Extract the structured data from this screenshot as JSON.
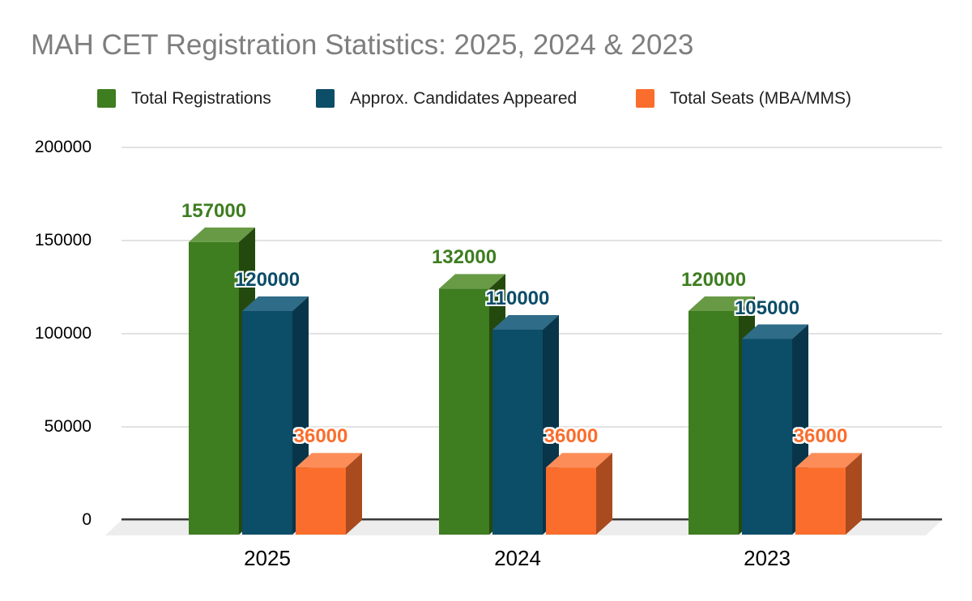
{
  "title": "MAH CET Registration Statistics: 2025, 2024 & 2023",
  "chart_data": {
    "type": "bar",
    "variant": "3d-grouped-column",
    "title": "MAH CET Registration Statistics: 2025, 2024 & 2023",
    "categories": [
      "2025",
      "2024",
      "2023"
    ],
    "series": [
      {
        "name": "Total Registrations",
        "values": [
          157000,
          132000,
          120000
        ],
        "color": "#3E7D20",
        "color_top": "#689A46",
        "color_side": "#24490E"
      },
      {
        "name": "Approx. Candidates Appeared",
        "values": [
          120000,
          110000,
          105000
        ],
        "color": "#0C4D68",
        "color_top": "#2F6C88",
        "color_side": "#09354A"
      },
      {
        "name": "Total Seats (MBA/MMS)",
        "values": [
          36000,
          36000,
          36000
        ],
        "color": "#FB6D2C",
        "color_top": "#FC8D58",
        "color_side": "#AA4A1F"
      }
    ],
    "ylim": [
      0,
      200000
    ],
    "yticks": [
      0,
      50000,
      100000,
      150000,
      200000
    ],
    "grid": true,
    "legend_position": "top",
    "data_labels": true,
    "colors": {
      "background": "#FFFFFF",
      "title_text": "#7E7E7E",
      "legend_text": "#1F1F1F",
      "axis_text": "#000000",
      "grid_line": "#D9D9D9",
      "zero_line": "#3A3A3A",
      "floor": "#EDEDED"
    }
  }
}
